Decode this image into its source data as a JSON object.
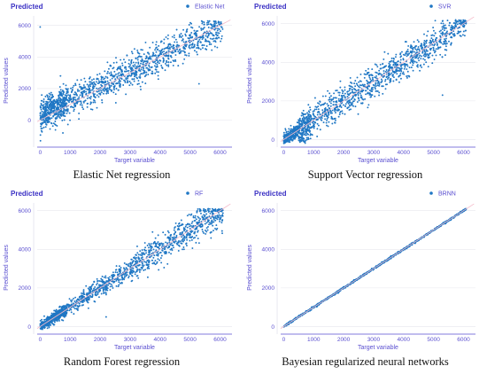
{
  "chart_data": [
    {
      "type": "scatter",
      "title": "Predicted",
      "legend": "Elastic Net",
      "caption": "Elastic Net regression",
      "xlabel": "Target variable",
      "ylabel": "Predicted values",
      "xlim": [
        -100,
        6400
      ],
      "ylim": [
        -1600,
        6600
      ],
      "xticks": [
        0,
        1000,
        2000,
        3000,
        4000,
        5000,
        6000
      ],
      "yticks": [
        0,
        2000,
        4000,
        6000
      ],
      "model": "elastic",
      "outliers": [
        [
          0,
          5900
        ],
        [
          5300,
          2300
        ]
      ],
      "color": "#1f77c4",
      "line_color": "#f4b9c8"
    },
    {
      "type": "scatter",
      "title": "Predicted",
      "legend": "SVR",
      "caption": "Support Vector regression",
      "xlabel": "Target variable",
      "ylabel": "Predicted values",
      "xlim": [
        -100,
        6400
      ],
      "ylim": [
        -300,
        6400
      ],
      "xticks": [
        0,
        1000,
        2000,
        3000,
        4000,
        5000,
        6000
      ],
      "yticks": [
        0,
        2000,
        4000,
        6000
      ],
      "model": "svr",
      "outliers": [
        [
          5300,
          2300
        ]
      ],
      "color": "#1f77c4",
      "line_color": "#f4b9c8"
    },
    {
      "type": "scatter",
      "title": "Predicted",
      "legend": "RF",
      "caption": "Random Forest regression",
      "xlabel": "Target variable",
      "ylabel": "Predicted values",
      "xlim": [
        -100,
        6400
      ],
      "ylim": [
        -300,
        6400
      ],
      "xticks": [
        0,
        1000,
        2000,
        3000,
        4000,
        5000,
        6000
      ],
      "yticks": [
        0,
        2000,
        4000,
        6000
      ],
      "model": "rf",
      "outliers": [
        [
          2200,
          500
        ]
      ],
      "color": "#1f77c4",
      "line_color": "#f4b9c8"
    },
    {
      "type": "scatter",
      "title": "Predicted",
      "legend": "BRNN",
      "caption": "Bayesian regularized neural networks",
      "xlabel": "Target variable",
      "ylabel": "Predicted values",
      "xlim": [
        -100,
        6400
      ],
      "ylim": [
        -300,
        6400
      ],
      "xticks": [
        0,
        1000,
        2000,
        3000,
        4000,
        5000,
        6000
      ],
      "yticks": [
        0,
        2000,
        4000,
        6000
      ],
      "model": "brnn",
      "outliers": [],
      "color": "#1f77c4",
      "line_color": "#f4b9c8"
    }
  ]
}
